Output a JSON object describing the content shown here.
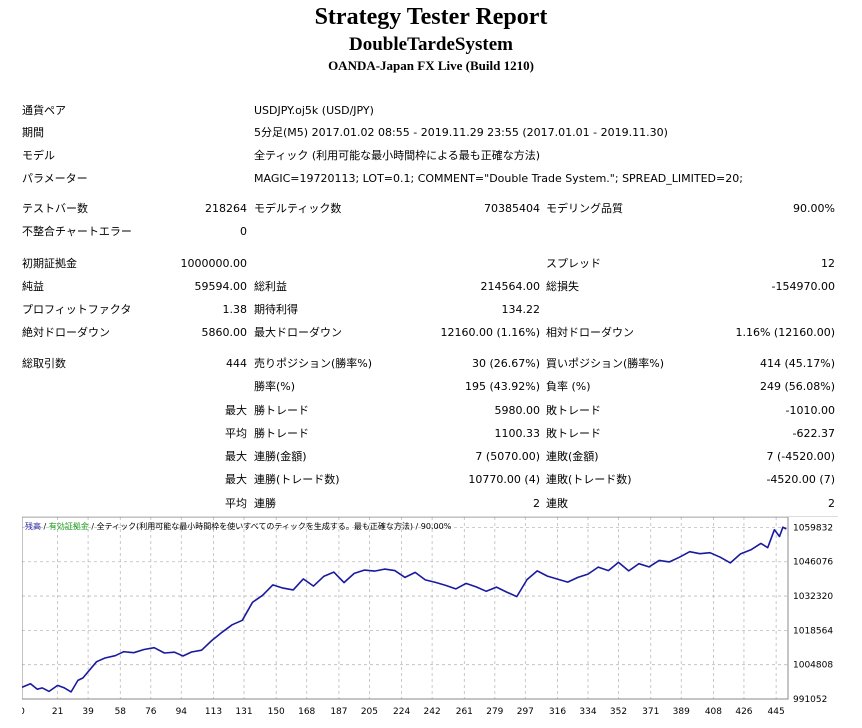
{
  "report": {
    "title": "Strategy Tester Report",
    "subtitle": "DoubleTardeSystem",
    "broker": "OANDA-Japan FX Live (Build 1210)"
  },
  "info": {
    "symbol_label": "通貨ペア",
    "symbol": "USDJPY.oj5k (USD/JPY)",
    "period_label": "期間",
    "period": "5分足(M5) 2017.01.02 08:55 - 2019.11.29 23:55 (2017.01.01 - 2019.11.30)",
    "model_label": "モデル",
    "model": "全ティック (利用可能な最小時間枠による最も正確な方法)",
    "params_label": "パラメーター",
    "params": "MAGIC=19720113; LOT=0.1; COMMENT=\"Double Trade System.\"; SPREAD_LIMITED=20;"
  },
  "stats": {
    "bars_label": "テストバー数",
    "bars": "218264",
    "ticks_label": "モデルティック数",
    "ticks": "70385404",
    "quality_label": "モデリング品質",
    "quality": "90.00%",
    "mismatch_label": "不整合チャートエラー",
    "mismatch": "0",
    "deposit_label": "初期証拠金",
    "deposit": "1000000.00",
    "spread_label": "スプレッド",
    "spread": "12",
    "net_label": "純益",
    "net": "59594.00",
    "gross_profit_label": "総利益",
    "gross_profit": "214564.00",
    "gross_loss_label": "総損失",
    "gross_loss": "-154970.00",
    "pf_label": "プロフィットファクタ",
    "pf": "1.38",
    "expected_label": "期待利得",
    "expected": "134.22",
    "abs_dd_label": "絶対ドローダウン",
    "abs_dd": "5860.00",
    "max_dd_label": "最大ドローダウン",
    "max_dd": "12160.00 (1.16%)",
    "rel_dd_label": "相対ドローダウン",
    "rel_dd": "1.16% (12160.00)",
    "trades_label": "総取引数",
    "trades": "444",
    "short_label": "売りポジション(勝率%)",
    "short": "30 (26.67%)",
    "long_label": "買いポジション(勝率%)",
    "long": "414 (45.17%)",
    "win_rate_label": "勝率(%)",
    "win_rate": "195 (43.92%)",
    "loss_rate_label": "負率 (%)",
    "loss_rate": "249 (56.08%)",
    "max_q": "最大",
    "avg_q": "平均",
    "win_trade_label": "勝トレード",
    "loss_trade_label": "敗トレード",
    "max_win": "5980.00",
    "max_loss": "-1010.00",
    "avg_win": "1100.33",
    "avg_loss": "-622.37",
    "consec_win_amt_label": "連勝(金額)",
    "consec_loss_amt_label": "連敗(金額)",
    "consec_win_amt": "7 (5070.00)",
    "consec_loss_amt": "7 (-4520.00)",
    "consec_win_cnt_label": "連勝(トレード数)",
    "consec_loss_cnt_label": "連敗(トレード数)",
    "consec_win_cnt": "10770.00 (4)",
    "consec_loss_cnt": "-4520.00 (7)",
    "avg_consec_win_label": "連勝",
    "avg_consec_win": "2",
    "avg_consec_loss_label": "連敗",
    "avg_consec_loss": "2"
  },
  "chart_data": {
    "type": "line",
    "legend": {
      "balance": "残高",
      "equity": "有効証拠金",
      "description": "全ティック(利用可能な最小時間枠を使いすべてのティックを生成する。最も正確な方法)",
      "quality": "90.00%"
    },
    "colors": {
      "balance": "#1a1aa0",
      "equity": "#1e9e1e",
      "grid": "#bbbbbb"
    },
    "xlim": [
      0,
      452
    ],
    "ylim": [
      991052,
      1064000
    ],
    "x_ticks": [
      0,
      21,
      39,
      58,
      76,
      94,
      113,
      131,
      150,
      168,
      187,
      205,
      224,
      242,
      261,
      279,
      297,
      316,
      334,
      352,
      371,
      389,
      408,
      426,
      445
    ],
    "y_ticks": [
      991052,
      1004808,
      1018564,
      1032320,
      1046076,
      1059832
    ],
    "series": [
      {
        "name": "残高",
        "x": [
          0,
          5,
          9,
          12,
          16,
          21,
          25,
          29,
          33,
          36,
          39,
          44,
          49,
          55,
          60,
          66,
          72,
          78,
          84,
          90,
          95,
          100,
          106,
          112,
          118,
          124,
          130,
          136,
          142,
          148,
          154,
          160,
          166,
          172,
          178,
          184,
          190,
          196,
          202,
          208,
          214,
          220,
          226,
          232,
          238,
          244,
          250,
          256,
          262,
          268,
          274,
          280,
          286,
          292,
          298,
          304,
          310,
          316,
          322,
          328,
          334,
          340,
          346,
          352,
          358,
          364,
          370,
          376,
          382,
          388,
          394,
          400,
          406,
          412,
          418,
          424,
          430,
          436,
          440,
          444,
          447,
          449,
          451
        ],
        "values": [
          995800,
          997200,
          995000,
          995500,
          994100,
          996500,
          995500,
          993900,
          998500,
          999500,
          1002000,
          1006000,
          1007500,
          1008400,
          1010000,
          1009600,
          1010900,
          1011600,
          1009500,
          1009800,
          1008300,
          1009900,
          1010600,
          1014500,
          1017800,
          1020800,
          1022600,
          1029800,
          1032600,
          1036800,
          1035500,
          1034800,
          1039200,
          1036300,
          1040200,
          1041900,
          1037700,
          1041400,
          1042700,
          1042300,
          1043100,
          1042500,
          1039800,
          1041800,
          1038800,
          1037800,
          1036600,
          1035200,
          1037400,
          1036000,
          1034200,
          1035900,
          1033900,
          1032100,
          1038900,
          1042400,
          1040300,
          1039100,
          1037900,
          1039800,
          1041100,
          1043900,
          1042500,
          1045800,
          1042400,
          1045300,
          1044000,
          1046600,
          1046000,
          1047900,
          1050100,
          1049300,
          1049700,
          1047900,
          1045600,
          1049200,
          1050800,
          1053400,
          1051700,
          1058900,
          1056200,
          1059900,
          1059200
        ]
      }
    ]
  }
}
